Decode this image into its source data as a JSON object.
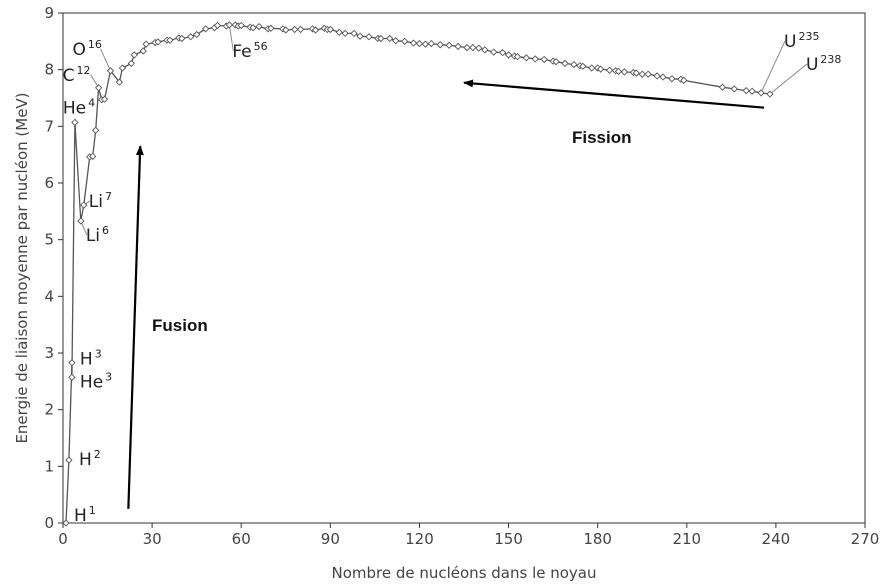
{
  "chart_data": {
    "type": "scatter",
    "xlabel": "Nombre de nucléons dans le noyau",
    "ylabel": "Energie de liaison moyenne par nucléon (MeV)",
    "xlim": [
      0,
      270
    ],
    "ylim": [
      0,
      9
    ],
    "xticks": [
      "0",
      "30",
      "60",
      "90",
      "120",
      "150",
      "180",
      "210",
      "240",
      "270"
    ],
    "yticks": [
      "0",
      "1",
      "2",
      "3",
      "4",
      "5",
      "6",
      "7",
      "8",
      "9"
    ],
    "grid": false,
    "series": [
      {
        "points": [
          [
            1,
            0
          ],
          [
            2,
            1.11
          ],
          [
            3,
            2.83
          ],
          [
            3,
            2.57
          ],
          [
            4,
            7.07
          ],
          [
            6,
            5.33
          ],
          [
            7,
            5.61
          ],
          [
            9,
            6.46
          ],
          [
            10,
            6.47
          ],
          [
            11,
            6.93
          ],
          [
            12,
            7.68
          ],
          [
            13,
            7.47
          ],
          [
            14,
            7.48
          ],
          [
            16,
            7.98
          ],
          [
            19,
            7.78
          ],
          [
            20,
            8.03
          ],
          [
            23,
            8.11
          ],
          [
            24,
            8.26
          ],
          [
            27,
            8.33
          ],
          [
            28,
            8.45
          ],
          [
            31,
            8.48
          ],
          [
            32,
            8.49
          ],
          [
            35,
            8.52
          ],
          [
            36,
            8.52
          ],
          [
            39,
            8.56
          ],
          [
            40,
            8.55
          ],
          [
            43,
            8.58
          ],
          [
            45,
            8.62
          ],
          [
            48,
            8.72
          ],
          [
            51,
            8.74
          ],
          [
            52,
            8.78
          ],
          [
            55,
            8.77
          ],
          [
            56,
            8.79
          ],
          [
            58,
            8.79
          ],
          [
            59,
            8.77
          ],
          [
            60,
            8.78
          ],
          [
            63,
            8.75
          ],
          [
            64,
            8.74
          ],
          [
            66,
            8.76
          ],
          [
            69,
            8.72
          ],
          [
            70,
            8.73
          ],
          [
            74,
            8.72
          ],
          [
            75,
            8.7
          ],
          [
            78,
            8.71
          ],
          [
            80,
            8.71
          ],
          [
            84,
            8.72
          ],
          [
            85,
            8.7
          ],
          [
            88,
            8.73
          ],
          [
            89,
            8.71
          ],
          [
            90,
            8.71
          ],
          [
            93,
            8.66
          ],
          [
            95,
            8.64
          ],
          [
            98,
            8.64
          ],
          [
            100,
            8.59
          ],
          [
            103,
            8.58
          ],
          [
            106,
            8.55
          ],
          [
            107,
            8.55
          ],
          [
            110,
            8.55
          ],
          [
            112,
            8.51
          ],
          [
            115,
            8.5
          ],
          [
            118,
            8.47
          ],
          [
            120,
            8.46
          ],
          [
            122,
            8.45
          ],
          [
            124,
            8.46
          ],
          [
            127,
            8.44
          ],
          [
            130,
            8.43
          ],
          [
            133,
            8.41
          ],
          [
            136,
            8.39
          ],
          [
            138,
            8.39
          ],
          [
            140,
            8.38
          ],
          [
            142,
            8.35
          ],
          [
            145,
            8.31
          ],
          [
            148,
            8.3
          ],
          [
            150,
            8.26
          ],
          [
            152,
            8.24
          ],
          [
            153,
            8.23
          ],
          [
            156,
            8.21
          ],
          [
            159,
            8.19
          ],
          [
            162,
            8.18
          ],
          [
            165,
            8.15
          ],
          [
            166,
            8.14
          ],
          [
            169,
            8.11
          ],
          [
            172,
            8.09
          ],
          [
            174,
            8.07
          ],
          [
            175,
            8.06
          ],
          [
            178,
            8.03
          ],
          [
            180,
            8.03
          ],
          [
            181,
            8.01
          ],
          [
            184,
            7.99
          ],
          [
            186,
            7.98
          ],
          [
            187,
            7.97
          ],
          [
            189,
            7.96
          ],
          [
            192,
            7.95
          ],
          [
            193,
            7.94
          ],
          [
            195,
            7.92
          ],
          [
            197,
            7.92
          ],
          [
            200,
            7.89
          ],
          [
            202,
            7.87
          ],
          [
            205,
            7.84
          ],
          [
            208,
            7.83
          ],
          [
            209,
            7.81
          ],
          [
            222,
            7.69
          ],
          [
            226,
            7.66
          ],
          [
            230,
            7.63
          ],
          [
            232,
            7.62
          ],
          [
            235,
            7.59
          ],
          [
            238,
            7.57
          ]
        ]
      }
    ]
  },
  "annotations": [
    {
      "base": "H",
      "sup": "1",
      "x": 1,
      "y": 0
    },
    {
      "base": "H",
      "sup": "2",
      "x": 2,
      "y": 1.11
    },
    {
      "base": "H",
      "sup": "3",
      "x": 3,
      "y": 2.83
    },
    {
      "base": "He",
      "sup": "3",
      "x": 3,
      "y": 2.57
    },
    {
      "base": "He",
      "sup": "4",
      "x": 4,
      "y": 7.07
    },
    {
      "base": "Li",
      "sup": "7",
      "x": 7,
      "y": 5.61
    },
    {
      "base": "Li",
      "sup": "6",
      "x": 6,
      "y": 5.33
    },
    {
      "base": "C",
      "sup": "12",
      "x": 12,
      "y": 7.68
    },
    {
      "base": "O",
      "sup": "16",
      "x": 16,
      "y": 7.98
    },
    {
      "base": "Fe",
      "sup": "56",
      "x": 56,
      "y": 8.79
    },
    {
      "base": "U",
      "sup": "235",
      "x": 235,
      "y": 7.59
    },
    {
      "base": "U",
      "sup": "238",
      "x": 238,
      "y": 7.57
    }
  ],
  "processes": [
    {
      "label": "Fusion",
      "arrow_from": [
        22,
        0.25
      ],
      "arrow_to": [
        26,
        6.65
      ]
    },
    {
      "label": "Fission",
      "arrow_from": [
        236,
        7.33
      ],
      "arrow_to": [
        135,
        7.77
      ]
    }
  ]
}
